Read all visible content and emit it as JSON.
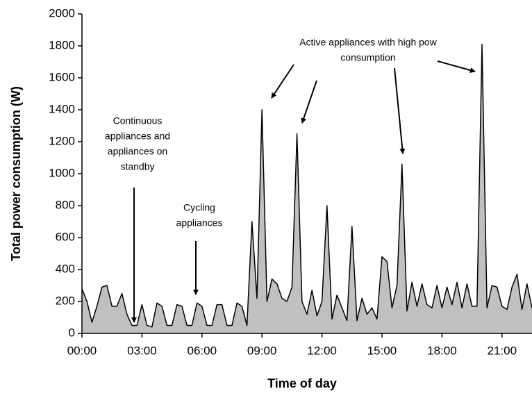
{
  "chart_data": {
    "type": "area",
    "xlabel": "Time of day",
    "ylabel": "Total power consumption (W)",
    "annotations": [
      {
        "lines": [
          "Continuous",
          "appliances and",
          "appliances on",
          "standby"
        ]
      },
      {
        "lines": [
          "Cycling",
          "appliances"
        ]
      },
      {
        "lines": [
          "Active appliances with high pow",
          "consumption"
        ]
      }
    ],
    "x": [
      0,
      0.25,
      0.5,
      0.75,
      1,
      1.25,
      1.5,
      1.75,
      2,
      2.25,
      2.5,
      2.75,
      3,
      3.25,
      3.5,
      3.75,
      4,
      4.25,
      4.5,
      4.75,
      5,
      5.25,
      5.5,
      5.75,
      6,
      6.25,
      6.5,
      6.75,
      7,
      7.25,
      7.5,
      7.75,
      8,
      8.25,
      8.5,
      8.75,
      9,
      9.25,
      9.5,
      9.75,
      10,
      10.25,
      10.5,
      10.75,
      11,
      11.25,
      11.5,
      11.75,
      12,
      12.25,
      12.5,
      12.75,
      13,
      13.25,
      13.5,
      13.75,
      14,
      14.25,
      14.5,
      14.75,
      15,
      15.25,
      15.5,
      15.75,
      16,
      16.25,
      16.5,
      16.75,
      17,
      17.25,
      17.5,
      17.75,
      18,
      18.25,
      18.5,
      18.75,
      19,
      19.25,
      19.5,
      19.75,
      20,
      20.25,
      20.5,
      20.75,
      21,
      21.25,
      21.5,
      21.75,
      22,
      22.25,
      22.5
    ],
    "values": [
      280,
      200,
      70,
      170,
      290,
      300,
      170,
      170,
      250,
      120,
      50,
      50,
      180,
      50,
      40,
      190,
      170,
      50,
      50,
      180,
      170,
      50,
      50,
      190,
      170,
      50,
      50,
      180,
      180,
      50,
      50,
      190,
      170,
      50,
      700,
      220,
      1400,
      200,
      340,
      310,
      220,
      200,
      290,
      1250,
      200,
      120,
      270,
      110,
      200,
      800,
      90,
      240,
      160,
      80,
      670,
      80,
      220,
      120,
      160,
      90,
      480,
      450,
      160,
      300,
      1060,
      140,
      320,
      170,
      310,
      180,
      160,
      300,
      160,
      290,
      180,
      320,
      160,
      310,
      170,
      170,
      1810,
      160,
      300,
      290,
      170,
      150,
      290,
      370,
      150,
      310,
      160
    ],
    "color": "#c0c0c0",
    "line_color": "#000000",
    "xlim": [
      0,
      22.5
    ],
    "ylim": [
      0,
      2000
    ],
    "xticks": [
      {
        "value": 0,
        "label": "00:00"
      },
      {
        "value": 3,
        "label": "03:00"
      },
      {
        "value": 6,
        "label": "06:00"
      },
      {
        "value": 9,
        "label": "09:00"
      },
      {
        "value": 12,
        "label": "12:00"
      },
      {
        "value": 15,
        "label": "15:00"
      },
      {
        "value": 18,
        "label": "18:00"
      },
      {
        "value": 21,
        "label": "21:00"
      }
    ],
    "yticks": [
      0,
      200,
      400,
      600,
      800,
      1000,
      1200,
      1400,
      1600,
      1800,
      2000
    ],
    "grid": false
  }
}
